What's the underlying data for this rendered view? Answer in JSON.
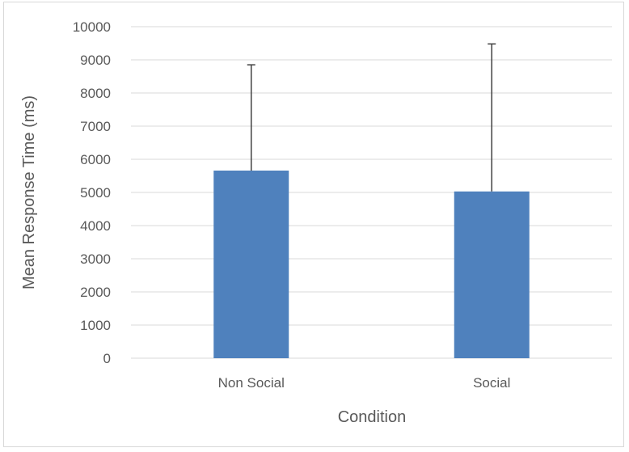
{
  "chart_data": {
    "type": "bar",
    "title": "",
    "xlabel": "Condition",
    "ylabel": "Mean Response Time (ms)",
    "categories": [
      "Non Social",
      "Social"
    ],
    "values": [
      5660,
      5030
    ],
    "error_upper": [
      8850,
      9480
    ],
    "ylim": [
      0,
      10000
    ],
    "ytick_step": 1000,
    "yticks": [
      "0",
      "1000",
      "2000",
      "3000",
      "4000",
      "5000",
      "6000",
      "7000",
      "8000",
      "9000",
      "10000"
    ],
    "grid": true,
    "legend": "none",
    "colors": {
      "bar": "#4f81bd",
      "grid": "#d9d9d9",
      "error_bar": "#404040",
      "text": "#595959"
    }
  }
}
